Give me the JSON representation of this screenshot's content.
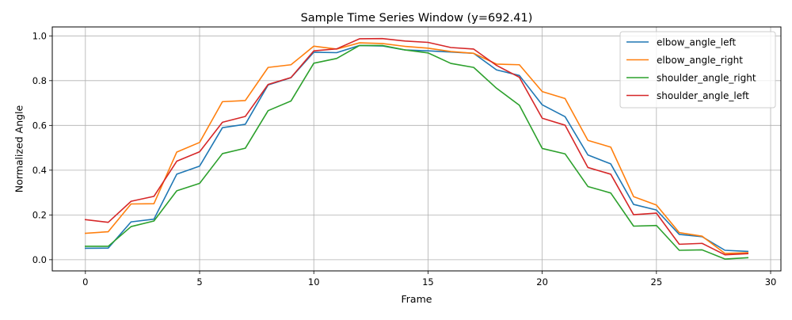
{
  "chart_data": {
    "type": "line",
    "title": "Sample Time Series Window (y=692.41)",
    "xlabel": "Frame",
    "ylabel": "Normalized Angle",
    "xlim": [
      -1.45,
      30.45
    ],
    "ylim": [
      -0.05,
      1.04
    ],
    "xticks": [
      0,
      5,
      10,
      15,
      20,
      25,
      30
    ],
    "yticks": [
      0.0,
      0.2,
      0.4,
      0.6,
      0.8,
      1.0
    ],
    "grid": true,
    "legend_position": "top-right",
    "x": [
      0,
      1,
      2,
      3,
      4,
      5,
      6,
      7,
      8,
      9,
      10,
      11,
      12,
      13,
      14,
      15,
      16,
      17,
      18,
      19,
      20,
      21,
      22,
      23,
      24,
      25,
      26,
      27,
      28,
      29
    ],
    "series": [
      {
        "name": "elbow_angle_left",
        "color": "#1f77b4",
        "values": [
          0.051,
          0.052,
          0.169,
          0.181,
          0.382,
          0.418,
          0.59,
          0.605,
          0.781,
          0.813,
          0.927,
          0.925,
          0.957,
          0.955,
          0.937,
          0.933,
          0.928,
          0.922,
          0.848,
          0.823,
          0.692,
          0.639,
          0.468,
          0.428,
          0.247,
          0.222,
          0.113,
          0.103,
          0.042,
          0.037
        ]
      },
      {
        "name": "elbow_angle_right",
        "color": "#ff7f0e",
        "values": [
          0.118,
          0.125,
          0.249,
          0.25,
          0.481,
          0.524,
          0.706,
          0.711,
          0.859,
          0.871,
          0.954,
          0.941,
          0.969,
          0.966,
          0.953,
          0.945,
          0.93,
          0.922,
          0.874,
          0.871,
          0.751,
          0.72,
          0.533,
          0.503,
          0.282,
          0.244,
          0.121,
          0.105,
          0.028,
          0.031
        ]
      },
      {
        "name": "shoulder_angle_right",
        "color": "#2ca02c",
        "values": [
          0.06,
          0.06,
          0.148,
          0.173,
          0.308,
          0.341,
          0.474,
          0.498,
          0.666,
          0.709,
          0.878,
          0.899,
          0.957,
          0.957,
          0.937,
          0.924,
          0.877,
          0.859,
          0.766,
          0.69,
          0.497,
          0.473,
          0.327,
          0.298,
          0.15,
          0.153,
          0.042,
          0.044,
          0.003,
          0.009
        ]
      },
      {
        "name": "shoulder_angle_left",
        "color": "#d62728",
        "values": [
          0.179,
          0.167,
          0.261,
          0.283,
          0.44,
          0.482,
          0.614,
          0.64,
          0.783,
          0.814,
          0.933,
          0.942,
          0.987,
          0.988,
          0.977,
          0.971,
          0.948,
          0.941,
          0.868,
          0.815,
          0.632,
          0.601,
          0.412,
          0.382,
          0.201,
          0.208,
          0.069,
          0.073,
          0.022,
          0.027
        ]
      }
    ]
  }
}
